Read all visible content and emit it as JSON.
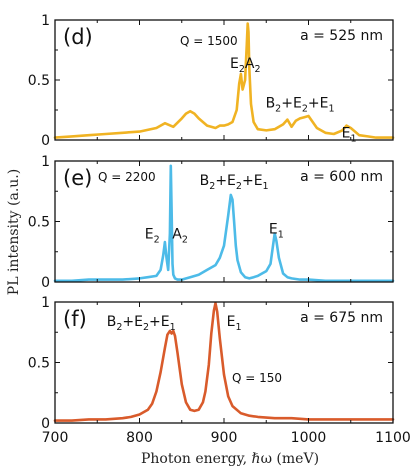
{
  "chart_data": {
    "type": "line",
    "xlabel": "Photon energy, ℏω (meV)",
    "ylabel": "PL intensity (a.u.)",
    "xlim": [
      700,
      1100
    ],
    "xticks": [
      "700",
      "800",
      "900",
      "1000",
      "1100"
    ],
    "yticks": [
      "0",
      "0.5",
      "1"
    ],
    "panels": [
      {
        "label": "(d)",
        "annotation": "a = 525 nm",
        "quality": "Q = 1500",
        "color": "#f0b323",
        "ylim": [
          0,
          1
        ],
        "peak_labels": [
          {
            "text": "E₂",
            "x": 916,
            "y": 0.6
          },
          {
            "text": "A₂",
            "x": 934,
            "y": 0.6
          },
          {
            "text": "B₂+E₂+E₁",
            "x": 990,
            "y": 0.27
          },
          {
            "text": "E₁",
            "x": 1048,
            "y": 0.02
          }
        ],
        "series": [
          {
            "x": [
              700,
              720,
              740,
              760,
              780,
              800,
              820,
              830,
              840,
              850,
              855,
              860,
              865,
              870,
              880,
              890,
              895,
              900,
              905,
              910,
              915,
              918,
              920,
              922,
              925,
              927,
              928,
              929,
              930,
              932,
              935,
              940,
              950,
              960,
              970,
              975,
              980,
              985,
              990,
              995,
              1000,
              1005,
              1010,
              1020,
              1030,
              1040,
              1045,
              1050,
              1060,
              1070,
              1080,
              1100
            ],
            "y": [
              0.02,
              0.03,
              0.04,
              0.05,
              0.06,
              0.07,
              0.1,
              0.14,
              0.11,
              0.18,
              0.22,
              0.24,
              0.22,
              0.18,
              0.12,
              0.1,
              0.12,
              0.12,
              0.13,
              0.15,
              0.25,
              0.47,
              0.55,
              0.42,
              0.5,
              0.8,
              0.97,
              0.9,
              0.6,
              0.3,
              0.15,
              0.09,
              0.08,
              0.09,
              0.13,
              0.17,
              0.11,
              0.16,
              0.18,
              0.19,
              0.2,
              0.15,
              0.1,
              0.06,
              0.05,
              0.08,
              0.12,
              0.1,
              0.04,
              0.03,
              0.02,
              0.02
            ]
          }
        ]
      },
      {
        "label": "(e)",
        "annotation": "a = 600 nm",
        "quality": "Q = 2200",
        "color": "#4dbbe8",
        "ylim": [
          0,
          1
        ],
        "peak_labels": [
          {
            "text": "E₂",
            "x": 815,
            "y": 0.36
          },
          {
            "text": "A₂",
            "x": 848,
            "y": 0.36
          },
          {
            "text": "B₂+E₂+E₁",
            "x": 912,
            "y": 0.8
          },
          {
            "text": "E₁",
            "x": 962,
            "y": 0.4
          }
        ],
        "series": [
          {
            "x": [
              700,
              720,
              740,
              760,
              780,
              800,
              810,
              820,
              825,
              828,
              830,
              832,
              834,
              836,
              837,
              838,
              839,
              840,
              842,
              845,
              850,
              860,
              870,
              880,
              890,
              895,
              900,
              905,
              908,
              910,
              912,
              914,
              916,
              920,
              925,
              930,
              935,
              940,
              945,
              950,
              955,
              958,
              960,
              962,
              965,
              970,
              975,
              980,
              990,
              1000,
              1020,
              1040,
              1060,
              1080,
              1100
            ],
            "y": [
              0.01,
              0.01,
              0.02,
              0.02,
              0.02,
              0.03,
              0.04,
              0.05,
              0.1,
              0.22,
              0.33,
              0.2,
              0.1,
              0.4,
              0.96,
              0.6,
              0.15,
              0.06,
              0.03,
              0.02,
              0.02,
              0.04,
              0.06,
              0.1,
              0.14,
              0.2,
              0.3,
              0.55,
              0.72,
              0.68,
              0.5,
              0.3,
              0.18,
              0.08,
              0.04,
              0.03,
              0.04,
              0.05,
              0.07,
              0.09,
              0.15,
              0.3,
              0.4,
              0.34,
              0.2,
              0.07,
              0.04,
              0.03,
              0.02,
              0.02,
              0.01,
              0.01,
              0.01,
              0.01,
              0.01
            ]
          }
        ]
      },
      {
        "label": "(f)",
        "annotation": "a = 675 nm",
        "quality": "Q = 150",
        "color": "#d95b2b",
        "ylim": [
          0,
          1
        ],
        "peak_labels": [
          {
            "text": "B₂+E₂+E₁",
            "x": 802,
            "y": 0.8
          },
          {
            "text": "E₁",
            "x": 912,
            "y": 0.8
          }
        ],
        "series": [
          {
            "x": [
              700,
              720,
              740,
              760,
              780,
              790,
              800,
              810,
              815,
              820,
              825,
              830,
              833,
              836,
              838,
              840,
              842,
              845,
              850,
              855,
              860,
              865,
              870,
              875,
              878,
              882,
              885,
              888,
              890,
              892,
              895,
              900,
              905,
              910,
              920,
              930,
              940,
              960,
              980,
              1000,
              1020,
              1040,
              1060,
              1080,
              1100
            ],
            "y": [
              0.02,
              0.02,
              0.03,
              0.03,
              0.04,
              0.05,
              0.07,
              0.11,
              0.16,
              0.26,
              0.42,
              0.62,
              0.73,
              0.76,
              0.74,
              0.76,
              0.72,
              0.58,
              0.32,
              0.17,
              0.11,
              0.1,
              0.11,
              0.17,
              0.26,
              0.48,
              0.74,
              0.93,
              0.99,
              0.92,
              0.7,
              0.4,
              0.22,
              0.14,
              0.08,
              0.06,
              0.05,
              0.04,
              0.04,
              0.03,
              0.03,
              0.03,
              0.03,
              0.03,
              0.03
            ]
          }
        ]
      }
    ]
  }
}
